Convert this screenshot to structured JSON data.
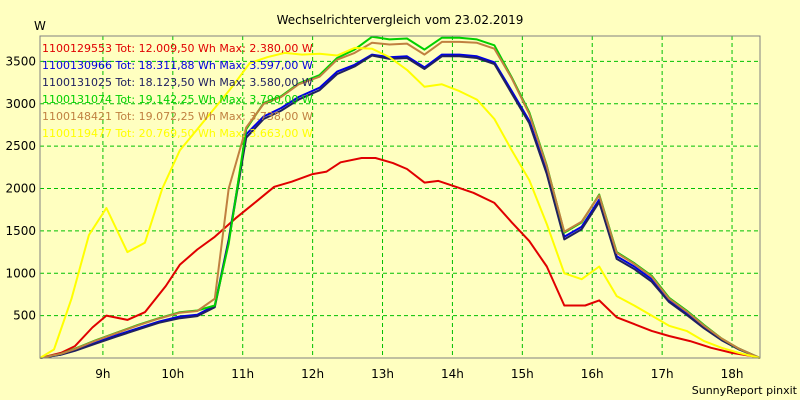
{
  "chart_data": {
    "type": "line",
    "title": "Wechselrichtervergleich vom 23.02.2019",
    "ylabel": "W",
    "footer": "SunnyReport pinxit",
    "xlim": [
      8.1,
      18.4
    ],
    "ylim": [
      0,
      3800
    ],
    "x_ticks": [
      {
        "value": 9,
        "label": "9h"
      },
      {
        "value": 10,
        "label": "10h"
      },
      {
        "value": 11,
        "label": "11h"
      },
      {
        "value": 12,
        "label": "12h"
      },
      {
        "value": 13,
        "label": "13h"
      },
      {
        "value": 14,
        "label": "14h"
      },
      {
        "value": 15,
        "label": "15h"
      },
      {
        "value": 16,
        "label": "16h"
      },
      {
        "value": 17,
        "label": "17h"
      },
      {
        "value": 18,
        "label": "18h"
      }
    ],
    "y_ticks": [
      500,
      1000,
      1500,
      2000,
      2500,
      3000,
      3500
    ],
    "grid": true,
    "legend_position": "top-left",
    "series": [
      {
        "name": "1100129553",
        "legend": "1100129553 Tot: 12.009,50 Wh Max: 2.380,00 W",
        "color": "#e00000",
        "points": [
          [
            8.1,
            0
          ],
          [
            8.4,
            60
          ],
          [
            8.6,
            140
          ],
          [
            8.85,
            360
          ],
          [
            9.05,
            500
          ],
          [
            9.35,
            450
          ],
          [
            9.6,
            540
          ],
          [
            9.9,
            850
          ],
          [
            10.1,
            1100
          ],
          [
            10.35,
            1280
          ],
          [
            10.6,
            1430
          ],
          [
            10.9,
            1650
          ],
          [
            11.2,
            1850
          ],
          [
            11.45,
            2020
          ],
          [
            11.7,
            2080
          ],
          [
            12,
            2170
          ],
          [
            12.2,
            2200
          ],
          [
            12.4,
            2310
          ],
          [
            12.7,
            2360
          ],
          [
            12.9,
            2360
          ],
          [
            13.15,
            2300
          ],
          [
            13.35,
            2230
          ],
          [
            13.6,
            2070
          ],
          [
            13.8,
            2090
          ],
          [
            14.05,
            2020
          ],
          [
            14.3,
            1950
          ],
          [
            14.6,
            1830
          ],
          [
            14.85,
            1600
          ],
          [
            15.1,
            1380
          ],
          [
            15.35,
            1080
          ],
          [
            15.6,
            620
          ],
          [
            15.9,
            620
          ],
          [
            16.1,
            680
          ],
          [
            16.35,
            480
          ],
          [
            16.6,
            400
          ],
          [
            16.85,
            320
          ],
          [
            17.1,
            260
          ],
          [
            17.4,
            200
          ],
          [
            17.7,
            120
          ],
          [
            18,
            60
          ],
          [
            18.3,
            20
          ],
          [
            18.4,
            0
          ]
        ]
      },
      {
        "name": "1100130966",
        "legend": "1100130966 Tot: 18.311,88 Wh Max: 3.597,00 W",
        "color": "#0000e0",
        "points": [
          [
            8.1,
            0
          ],
          [
            8.4,
            40
          ],
          [
            8.6,
            90
          ],
          [
            8.9,
            180
          ],
          [
            9.2,
            270
          ],
          [
            9.5,
            350
          ],
          [
            9.8,
            430
          ],
          [
            10.1,
            490
          ],
          [
            10.35,
            510
          ],
          [
            10.6,
            620
          ],
          [
            10.8,
            1400
          ],
          [
            11.05,
            2640
          ],
          [
            11.3,
            2850
          ],
          [
            11.55,
            2950
          ],
          [
            11.8,
            3080
          ],
          [
            12.1,
            3190
          ],
          [
            12.35,
            3380
          ],
          [
            12.6,
            3460
          ],
          [
            12.85,
            3580
          ],
          [
            13.1,
            3550
          ],
          [
            13.35,
            3560
          ],
          [
            13.6,
            3430
          ],
          [
            13.85,
            3580
          ],
          [
            14.1,
            3580
          ],
          [
            14.35,
            3560
          ],
          [
            14.6,
            3490
          ],
          [
            14.85,
            3150
          ],
          [
            15.1,
            2800
          ],
          [
            15.35,
            2200
          ],
          [
            15.6,
            1430
          ],
          [
            15.85,
            1550
          ],
          [
            16.1,
            1870
          ],
          [
            16.35,
            1200
          ],
          [
            16.6,
            1080
          ],
          [
            16.85,
            930
          ],
          [
            17.1,
            680
          ],
          [
            17.35,
            530
          ],
          [
            17.6,
            370
          ],
          [
            17.85,
            220
          ],
          [
            18.1,
            110
          ],
          [
            18.4,
            0
          ]
        ]
      },
      {
        "name": "1100131025",
        "legend": "1100131025 Tot: 18.123,50 Wh Max: 3.580,00 W",
        "color": "#202060",
        "points": [
          [
            8.1,
            0
          ],
          [
            8.4,
            40
          ],
          [
            8.6,
            85
          ],
          [
            8.9,
            170
          ],
          [
            9.2,
            255
          ],
          [
            9.5,
            335
          ],
          [
            9.8,
            415
          ],
          [
            10.1,
            470
          ],
          [
            10.35,
            495
          ],
          [
            10.6,
            600
          ],
          [
            10.8,
            1380
          ],
          [
            11.05,
            2600
          ],
          [
            11.3,
            2820
          ],
          [
            11.55,
            2920
          ],
          [
            11.8,
            3050
          ],
          [
            12.1,
            3160
          ],
          [
            12.35,
            3350
          ],
          [
            12.6,
            3440
          ],
          [
            12.85,
            3570
          ],
          [
            13.1,
            3530
          ],
          [
            13.35,
            3540
          ],
          [
            13.6,
            3410
          ],
          [
            13.85,
            3560
          ],
          [
            14.1,
            3560
          ],
          [
            14.35,
            3540
          ],
          [
            14.6,
            3470
          ],
          [
            14.85,
            3120
          ],
          [
            15.1,
            2770
          ],
          [
            15.35,
            2170
          ],
          [
            15.6,
            1400
          ],
          [
            15.85,
            1520
          ],
          [
            16.1,
            1840
          ],
          [
            16.35,
            1170
          ],
          [
            16.6,
            1050
          ],
          [
            16.85,
            900
          ],
          [
            17.1,
            660
          ],
          [
            17.35,
            510
          ],
          [
            17.6,
            350
          ],
          [
            17.85,
            210
          ],
          [
            18.1,
            100
          ],
          [
            18.4,
            0
          ]
        ]
      },
      {
        "name": "1100131074",
        "legend": "1100131074 Tot: 19.142,25 Wh Max: 3.790,00 W",
        "color": "#00d000",
        "points": [
          [
            8.1,
            0
          ],
          [
            8.4,
            50
          ],
          [
            8.6,
            110
          ],
          [
            8.9,
            210
          ],
          [
            9.2,
            300
          ],
          [
            9.5,
            390
          ],
          [
            9.8,
            470
          ],
          [
            10.1,
            540
          ],
          [
            10.35,
            560
          ],
          [
            10.6,
            620
          ],
          [
            10.8,
            1350
          ],
          [
            11.05,
            2700
          ],
          [
            11.3,
            3010
          ],
          [
            11.55,
            3090
          ],
          [
            11.8,
            3240
          ],
          [
            12.1,
            3340
          ],
          [
            12.35,
            3540
          ],
          [
            12.6,
            3640
          ],
          [
            12.85,
            3790
          ],
          [
            13.1,
            3760
          ],
          [
            13.35,
            3770
          ],
          [
            13.6,
            3640
          ],
          [
            13.85,
            3780
          ],
          [
            14.1,
            3780
          ],
          [
            14.35,
            3760
          ],
          [
            14.6,
            3690
          ],
          [
            14.85,
            3310
          ],
          [
            15.1,
            2900
          ],
          [
            15.35,
            2270
          ],
          [
            15.6,
            1480
          ],
          [
            15.85,
            1600
          ],
          [
            16.1,
            1930
          ],
          [
            16.35,
            1250
          ],
          [
            16.6,
            1120
          ],
          [
            16.85,
            970
          ],
          [
            17.1,
            710
          ],
          [
            17.35,
            560
          ],
          [
            17.6,
            390
          ],
          [
            17.85,
            230
          ],
          [
            18.1,
            110
          ],
          [
            18.4,
            0
          ]
        ]
      },
      {
        "name": "1100148421",
        "legend": "1100148421 Tot: 19.072,25 Wh Max: 3.738,00 W",
        "color": "#c08040",
        "points": [
          [
            8.1,
            0
          ],
          [
            8.4,
            50
          ],
          [
            8.6,
            105
          ],
          [
            8.9,
            205
          ],
          [
            9.2,
            295
          ],
          [
            9.5,
            385
          ],
          [
            9.8,
            465
          ],
          [
            10.1,
            535
          ],
          [
            10.35,
            555
          ],
          [
            10.6,
            700
          ],
          [
            10.8,
            2000
          ],
          [
            11.05,
            2720
          ],
          [
            11.3,
            3000
          ],
          [
            11.55,
            3080
          ],
          [
            11.8,
            3230
          ],
          [
            12.1,
            3320
          ],
          [
            12.35,
            3520
          ],
          [
            12.6,
            3600
          ],
          [
            12.85,
            3720
          ],
          [
            13.1,
            3700
          ],
          [
            13.35,
            3710
          ],
          [
            13.6,
            3580
          ],
          [
            13.85,
            3730
          ],
          [
            14.1,
            3730
          ],
          [
            14.35,
            3720
          ],
          [
            14.6,
            3650
          ],
          [
            14.85,
            3300
          ],
          [
            15.1,
            2880
          ],
          [
            15.35,
            2260
          ],
          [
            15.6,
            1490
          ],
          [
            15.85,
            1610
          ],
          [
            16.1,
            1920
          ],
          [
            16.35,
            1240
          ],
          [
            16.6,
            1110
          ],
          [
            16.85,
            960
          ],
          [
            17.1,
            700
          ],
          [
            17.35,
            550
          ],
          [
            17.6,
            380
          ],
          [
            17.85,
            230
          ],
          [
            18.1,
            110
          ],
          [
            18.4,
            0
          ]
        ]
      },
      {
        "name": "1100119477",
        "legend": "1100119477 Tot: 20.769,50 Wh Max: 3.663,00 W",
        "color": "#ffff00",
        "points": [
          [
            8.1,
            0
          ],
          [
            8.3,
            100
          ],
          [
            8.55,
            700
          ],
          [
            8.8,
            1450
          ],
          [
            9.05,
            1770
          ],
          [
            9.35,
            1250
          ],
          [
            9.6,
            1360
          ],
          [
            9.85,
            2000
          ],
          [
            10.1,
            2450
          ],
          [
            10.35,
            2700
          ],
          [
            10.6,
            2950
          ],
          [
            10.85,
            3200
          ],
          [
            11.1,
            3480
          ],
          [
            11.35,
            3550
          ],
          [
            11.6,
            3600
          ],
          [
            11.85,
            3580
          ],
          [
            12.1,
            3590
          ],
          [
            12.35,
            3570
          ],
          [
            12.6,
            3660
          ],
          [
            12.85,
            3650
          ],
          [
            13.1,
            3550
          ],
          [
            13.35,
            3400
          ],
          [
            13.6,
            3200
          ],
          [
            13.85,
            3230
          ],
          [
            14.1,
            3150
          ],
          [
            14.35,
            3050
          ],
          [
            14.6,
            2820
          ],
          [
            14.85,
            2450
          ],
          [
            15.1,
            2100
          ],
          [
            15.35,
            1580
          ],
          [
            15.6,
            1000
          ],
          [
            15.85,
            930
          ],
          [
            16.1,
            1080
          ],
          [
            16.35,
            730
          ],
          [
            16.6,
            620
          ],
          [
            16.85,
            500
          ],
          [
            17.1,
            380
          ],
          [
            17.35,
            320
          ],
          [
            17.6,
            200
          ],
          [
            17.85,
            120
          ],
          [
            18.1,
            60
          ],
          [
            18.4,
            0
          ]
        ]
      }
    ]
  }
}
